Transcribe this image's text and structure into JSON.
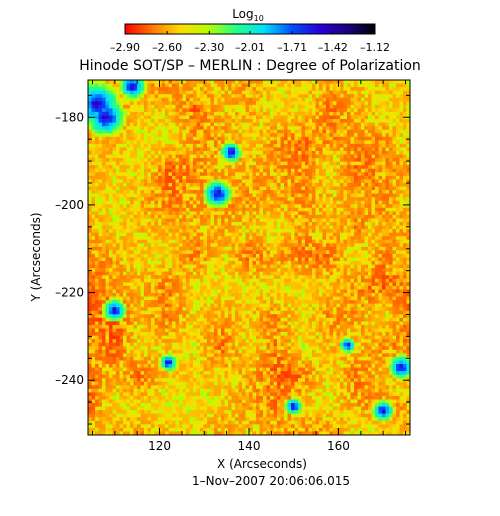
{
  "chart_data": {
    "type": "heatmap",
    "title": "Hinode SOT/SP – MERLIN : Degree of Polarization",
    "xlabel": "X (Arcseconds)",
    "ylabel": "Y (Arcseconds)",
    "footer": "1–Nov–2007 20:06:06.015",
    "xlim": [
      104,
      176
    ],
    "ylim": [
      -252.5,
      -171.5
    ],
    "x_ticks": [
      120,
      140,
      160
    ],
    "y_ticks": [
      -180,
      -200,
      -220,
      -240
    ],
    "x_tick_labels": [
      "120",
      "140",
      "160"
    ],
    "y_tick_labels": [
      "–180",
      "–200",
      "–220",
      "–240"
    ],
    "colorbar": {
      "label_base": "Log",
      "label_sub": "10",
      "min": -2.9,
      "max": -1.12,
      "ticks": [
        -2.9,
        -2.6,
        -2.3,
        -2.01,
        -1.71,
        -1.42,
        -1.12
      ],
      "tick_labels": [
        "–2.90",
        "–2.60",
        "–2.30",
        "–2.01",
        "–1.71",
        "–1.42",
        "–1.12"
      ],
      "colormap": [
        "#ff0000",
        "#ff7a00",
        "#ffdc00",
        "#b4ff00",
        "#22ff88",
        "#00e0ff",
        "#0050ff",
        "#2a00d8",
        "#1a0080",
        "#000000"
      ]
    }
  }
}
